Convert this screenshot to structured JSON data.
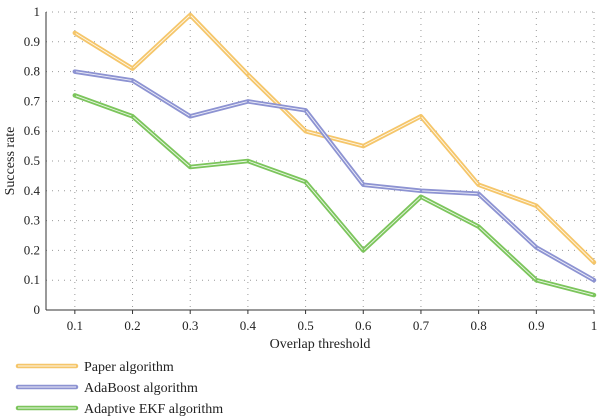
{
  "chart_data": {
    "type": "line",
    "xlabel": "Overlap threshold",
    "ylabel": "Success rate",
    "x": [
      0.1,
      0.2,
      0.3,
      0.4,
      0.5,
      0.6,
      0.7,
      0.8,
      0.9,
      1
    ],
    "x_tick_labels": [
      "0.1",
      "0.2",
      "0.3",
      "0.4",
      "0.5",
      "0.6",
      "0.7",
      "0.8",
      "0.9",
      "1"
    ],
    "xlim": [
      0.05,
      1.0
    ],
    "ylim": [
      0,
      1
    ],
    "y_ticks": [
      0,
      0.1,
      0.2,
      0.3,
      0.4,
      0.5,
      0.6,
      0.7,
      0.8,
      0.9,
      1
    ],
    "y_tick_labels": [
      "0",
      "0.1",
      "0.2",
      "0.3",
      "0.4",
      "0.5",
      "0.6",
      "0.7",
      "0.8",
      "0.9",
      "1"
    ],
    "grid": true,
    "legend_position": "bottom-left",
    "series": [
      {
        "name": "Paper algorithm",
        "color": "#f5c66a",
        "values": [
          0.93,
          0.81,
          0.99,
          0.79,
          0.6,
          0.55,
          0.65,
          0.42,
          0.35,
          0.16
        ]
      },
      {
        "name": "AdaBoost algorithm",
        "color": "#8d93d2",
        "values": [
          0.8,
          0.77,
          0.65,
          0.7,
          0.67,
          0.42,
          0.4,
          0.39,
          0.21,
          0.1
        ]
      },
      {
        "name": "Adaptive EKF algorithm",
        "color": "#7cc55c",
        "values": [
          0.72,
          0.65,
          0.48,
          0.5,
          0.43,
          0.2,
          0.38,
          0.28,
          0.1,
          0.05
        ]
      }
    ]
  }
}
